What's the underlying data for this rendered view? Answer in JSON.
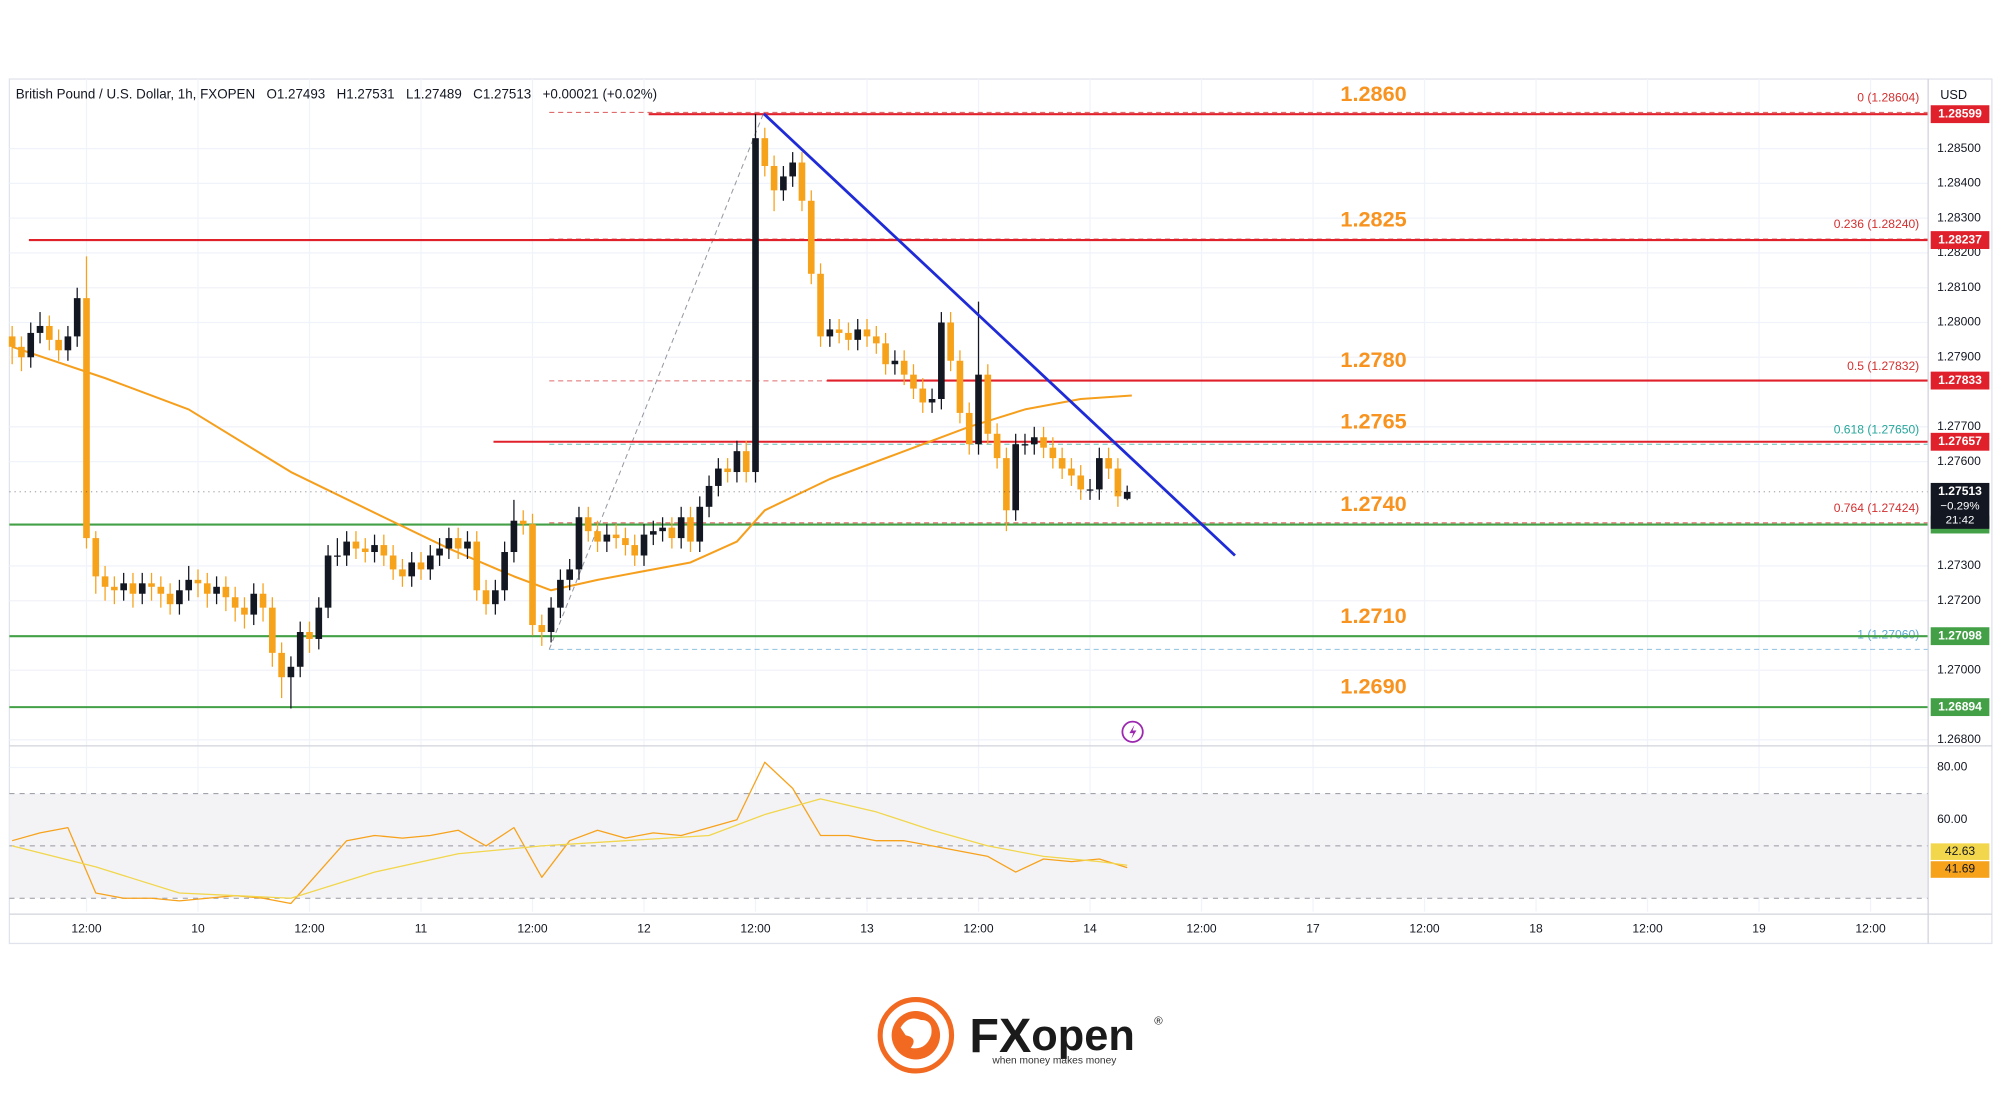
{
  "chart_data": {
    "type": "candlestick",
    "title": "British Pound / U.S. Dollar, 1h, FXOPEN",
    "ohlc_prefixes": [
      "O",
      "H",
      "L",
      "C"
    ],
    "change": "+0.00021 (+0.02%)",
    "currency": "USD",
    "up_color": "#131722",
    "down_color": "#f7a21b",
    "grid": true,
    "xlim": [
      -0.3,
      206.2
    ],
    "xticks": [
      {
        "value": 8,
        "label": "12:00"
      },
      {
        "value": 20,
        "label": "10"
      },
      {
        "value": 32,
        "label": "12:00"
      },
      {
        "value": 44,
        "label": "11"
      },
      {
        "value": 56,
        "label": "12:00"
      },
      {
        "value": 68,
        "label": "12"
      },
      {
        "value": 80,
        "label": "12:00"
      },
      {
        "value": 92,
        "label": "13"
      },
      {
        "value": 104,
        "label": "12:00"
      },
      {
        "value": 116,
        "label": "14"
      },
      {
        "value": 128,
        "label": "12:00"
      },
      {
        "value": 140,
        "label": "17"
      },
      {
        "value": 152,
        "label": "12:00"
      },
      {
        "value": 164,
        "label": "18"
      },
      {
        "value": 176,
        "label": "12:00"
      },
      {
        "value": 188,
        "label": "19"
      },
      {
        "value": 200,
        "label": "12:00"
      }
    ],
    "ylim": [
      1.2679,
      1.287
    ],
    "yticks": [
      {
        "value": 1.285,
        "label": "1.28500"
      },
      {
        "value": 1.284,
        "label": "1.28400"
      },
      {
        "value": 1.283,
        "label": "1.28300"
      },
      {
        "value": 1.282,
        "label": "1.28200"
      },
      {
        "value": 1.281,
        "label": "1.28100"
      },
      {
        "value": 1.28,
        "label": "1.28000"
      },
      {
        "value": 1.279,
        "label": "1.27900"
      },
      {
        "value": 1.277,
        "label": "1.27700"
      },
      {
        "value": 1.276,
        "label": "1.27600"
      },
      {
        "value": 1.273,
        "label": "1.27300"
      },
      {
        "value": 1.272,
        "label": "1.27200"
      },
      {
        "value": 1.27,
        "label": "1.27000"
      },
      {
        "value": 1.268,
        "label": "1.26800"
      }
    ],
    "candles": [
      [
        1.2796,
        1.2799,
        1.2788,
        1.2793
      ],
      [
        1.2793,
        1.2796,
        1.2786,
        1.279
      ],
      [
        1.279,
        1.28,
        1.2787,
        1.2797
      ],
      [
        1.2797,
        1.2803,
        1.2794,
        1.2799
      ],
      [
        1.2799,
        1.2802,
        1.2792,
        1.2795
      ],
      [
        1.2795,
        1.2798,
        1.2789,
        1.2792
      ],
      [
        1.2792,
        1.2799,
        1.2789,
        1.2796
      ],
      [
        1.2796,
        1.281,
        1.2793,
        1.2807
      ],
      [
        1.2807,
        1.2819,
        1.2735,
        1.2738
      ],
      [
        1.2738,
        1.274,
        1.2722,
        1.2727
      ],
      [
        1.2727,
        1.273,
        1.272,
        1.2724
      ],
      [
        1.2724,
        1.2727,
        1.2719,
        1.2723
      ],
      [
        1.2723,
        1.2728,
        1.272,
        1.2725
      ],
      [
        1.2725,
        1.2728,
        1.2718,
        1.2722
      ],
      [
        1.2722,
        1.2728,
        1.2719,
        1.2725
      ],
      [
        1.2725,
        1.2728,
        1.272,
        1.2724
      ],
      [
        1.2724,
        1.2727,
        1.2718,
        1.2722
      ],
      [
        1.2722,
        1.2725,
        1.2716,
        1.2719
      ],
      [
        1.2719,
        1.2726,
        1.2716,
        1.2723
      ],
      [
        1.2723,
        1.273,
        1.272,
        1.2726
      ],
      [
        1.2726,
        1.2729,
        1.2721,
        1.2725
      ],
      [
        1.2725,
        1.2728,
        1.2718,
        1.2722
      ],
      [
        1.2722,
        1.2727,
        1.2719,
        1.2724
      ],
      [
        1.2724,
        1.2727,
        1.2717,
        1.2721
      ],
      [
        1.2721,
        1.2724,
        1.2714,
        1.2718
      ],
      [
        1.2718,
        1.2721,
        1.2712,
        1.2716
      ],
      [
        1.2716,
        1.2725,
        1.2713,
        1.2722
      ],
      [
        1.2722,
        1.2725,
        1.2714,
        1.2718
      ],
      [
        1.2718,
        1.2721,
        1.2701,
        1.2705
      ],
      [
        1.2705,
        1.2708,
        1.2692,
        1.2698
      ],
      [
        1.2698,
        1.2704,
        1.2689,
        1.2701
      ],
      [
        1.2701,
        1.2714,
        1.2698,
        1.2711
      ],
      [
        1.2711,
        1.2714,
        1.2705,
        1.2709
      ],
      [
        1.2709,
        1.2721,
        1.2706,
        1.2718
      ],
      [
        1.2718,
        1.2736,
        1.2715,
        1.2733
      ],
      [
        1.2733,
        1.2738,
        1.273,
        1.2733
      ],
      [
        1.2733,
        1.274,
        1.273,
        1.2737
      ],
      [
        1.2737,
        1.274,
        1.2732,
        1.2735
      ],
      [
        1.2735,
        1.2738,
        1.2731,
        1.2734
      ],
      [
        1.2734,
        1.2739,
        1.2731,
        1.2736
      ],
      [
        1.2736,
        1.2739,
        1.273,
        1.2733
      ],
      [
        1.2733,
        1.2736,
        1.2726,
        1.2729
      ],
      [
        1.2729,
        1.2732,
        1.2724,
        1.2727
      ],
      [
        1.2727,
        1.2734,
        1.2724,
        1.2731
      ],
      [
        1.2731,
        1.2734,
        1.2726,
        1.2729
      ],
      [
        1.2729,
        1.2736,
        1.2726,
        1.2733
      ],
      [
        1.2733,
        1.2738,
        1.273,
        1.2735
      ],
      [
        1.2735,
        1.2741,
        1.2732,
        1.2738
      ],
      [
        1.2738,
        1.2741,
        1.2732,
        1.2735
      ],
      [
        1.2735,
        1.274,
        1.2732,
        1.2737
      ],
      [
        1.2737,
        1.274,
        1.272,
        1.2723
      ],
      [
        1.2723,
        1.2726,
        1.2716,
        1.2719
      ],
      [
        1.2719,
        1.2726,
        1.2716,
        1.2723
      ],
      [
        1.2723,
        1.2737,
        1.272,
        1.2734
      ],
      [
        1.2734,
        1.2749,
        1.2731,
        1.2743
      ],
      [
        1.2743,
        1.2746,
        1.2739,
        1.2742
      ],
      [
        1.2742,
        1.2745,
        1.271,
        1.2713
      ],
      [
        1.2713,
        1.2716,
        1.2707,
        1.2711
      ],
      [
        1.2711,
        1.2721,
        1.2708,
        1.2718
      ],
      [
        1.2718,
        1.2729,
        1.2715,
        1.2726
      ],
      [
        1.2726,
        1.2732,
        1.2723,
        1.2729
      ],
      [
        1.2729,
        1.2747,
        1.2726,
        1.2744
      ],
      [
        1.2744,
        1.2747,
        1.2737,
        1.274
      ],
      [
        1.274,
        1.2743,
        1.2734,
        1.2737
      ],
      [
        1.2737,
        1.2742,
        1.2734,
        1.2739
      ],
      [
        1.2739,
        1.2742,
        1.2735,
        1.2738
      ],
      [
        1.2738,
        1.2741,
        1.2733,
        1.2736
      ],
      [
        1.2736,
        1.2739,
        1.273,
        1.2733
      ],
      [
        1.2733,
        1.2742,
        1.273,
        1.2739
      ],
      [
        1.2739,
        1.2743,
        1.2736,
        1.274
      ],
      [
        1.274,
        1.2744,
        1.2737,
        1.2741
      ],
      [
        1.2741,
        1.2744,
        1.2735,
        1.2738
      ],
      [
        1.2738,
        1.2747,
        1.2735,
        1.2744
      ],
      [
        1.2744,
        1.2747,
        1.2734,
        1.2737
      ],
      [
        1.2737,
        1.275,
        1.2734,
        1.2747
      ],
      [
        1.2747,
        1.2756,
        1.2744,
        1.2753
      ],
      [
        1.2753,
        1.2761,
        1.275,
        1.2758
      ],
      [
        1.2758,
        1.2761,
        1.2754,
        1.2757
      ],
      [
        1.2757,
        1.2766,
        1.2754,
        1.2763
      ],
      [
        1.2763,
        1.2766,
        1.2754,
        1.2757
      ],
      [
        1.2757,
        1.286,
        1.2754,
        1.2853
      ],
      [
        1.2853,
        1.2856,
        1.2842,
        1.2845
      ],
      [
        1.2845,
        1.2848,
        1.2832,
        1.2838
      ],
      [
        1.2838,
        1.2845,
        1.2835,
        1.2842
      ],
      [
        1.2842,
        1.2849,
        1.2839,
        1.2846
      ],
      [
        1.2846,
        1.2849,
        1.2832,
        1.2835
      ],
      [
        1.2835,
        1.2838,
        1.2811,
        1.2814
      ],
      [
        1.2814,
        1.2817,
        1.2793,
        1.2796
      ],
      [
        1.2796,
        1.2801,
        1.2793,
        1.2798
      ],
      [
        1.2798,
        1.2801,
        1.2794,
        1.2797
      ],
      [
        1.2797,
        1.28,
        1.2792,
        1.2795
      ],
      [
        1.2795,
        1.2801,
        1.2792,
        1.2798
      ],
      [
        1.2798,
        1.2801,
        1.2793,
        1.2796
      ],
      [
        1.2796,
        1.2799,
        1.2791,
        1.2794
      ],
      [
        1.2794,
        1.2797,
        1.2785,
        1.2788
      ],
      [
        1.2788,
        1.2792,
        1.2785,
        1.2789
      ],
      [
        1.2789,
        1.2792,
        1.2782,
        1.2785
      ],
      [
        1.2785,
        1.2788,
        1.2778,
        1.2781
      ],
      [
        1.2781,
        1.2784,
        1.2774,
        1.2777
      ],
      [
        1.2777,
        1.2781,
        1.2774,
        1.2778
      ],
      [
        1.2778,
        1.2803,
        1.2775,
        1.28
      ],
      [
        1.28,
        1.2803,
        1.2786,
        1.2789
      ],
      [
        1.2789,
        1.2792,
        1.2771,
        1.2774
      ],
      [
        1.2774,
        1.2777,
        1.2762,
        1.2765
      ],
      [
        1.2765,
        1.2806,
        1.2762,
        1.2785
      ],
      [
        1.2785,
        1.2788,
        1.2765,
        1.2768
      ],
      [
        1.2768,
        1.2771,
        1.2758,
        1.2761
      ],
      [
        1.2761,
        1.2764,
        1.274,
        1.2746
      ],
      [
        1.2746,
        1.2768,
        1.2743,
        1.2765
      ],
      [
        1.2765,
        1.2768,
        1.2762,
        1.2765
      ],
      [
        1.2765,
        1.277,
        1.2762,
        1.2767
      ],
      [
        1.2767,
        1.277,
        1.2761,
        1.2764
      ],
      [
        1.2764,
        1.2767,
        1.2758,
        1.2761
      ],
      [
        1.2761,
        1.2764,
        1.2755,
        1.2758
      ],
      [
        1.2758,
        1.2761,
        1.2753,
        1.2756
      ],
      [
        1.2756,
        1.2759,
        1.2749,
        1.2752
      ],
      [
        1.2752,
        1.2755,
        1.2749,
        1.2752
      ],
      [
        1.2752,
        1.2764,
        1.2749,
        1.2761
      ],
      [
        1.2761,
        1.2764,
        1.2755,
        1.2758
      ],
      [
        1.2758,
        1.2761,
        1.2747,
        1.275
      ],
      [
        1.27493,
        1.27531,
        1.27489,
        1.27513
      ]
    ],
    "price_box": {
      "change": "−0.29%",
      "countdown": "21:42"
    },
    "ma": {
      "color": "#f59f1d",
      "x": [
        0,
        10,
        19,
        30,
        40,
        47,
        54,
        58,
        63,
        73,
        78,
        81,
        88,
        95,
        103,
        109,
        115,
        120.5
      ],
      "values": [
        1.2793,
        1.2784,
        1.2775,
        1.2757,
        1.2744,
        1.2735,
        1.2727,
        1.2723,
        1.2726,
        1.2731,
        1.2737,
        1.2746,
        1.2755,
        1.2762,
        1.277,
        1.2775,
        1.2778,
        1.2779
      ]
    },
    "levels": [
      {
        "label": "1.2860",
        "price": 1.28599,
        "color": "#e0202a",
        "x": 68.5
      },
      {
        "label": "1.2825",
        "price": 1.28237,
        "color": "#e0202a",
        "x": 1.8
      },
      {
        "label": "1.2780",
        "price": 1.27833,
        "color": "#e0202a",
        "x": 87.7
      },
      {
        "label": "1.2765",
        "price": 1.27657,
        "color": "#e0202a",
        "x": 51.8
      },
      {
        "label": "1.2740",
        "price": 1.27419,
        "color": "#43a047"
      },
      {
        "label": "1.2710",
        "price": 1.27098,
        "color": "#43a047"
      },
      {
        "label": "1.2690",
        "price": 1.26894,
        "color": "#43a047"
      }
    ],
    "level_label_color": "#f7931e",
    "fib": {
      "x": [
        57.8,
        80.9
      ],
      "levels": [
        {
          "label": "0 (1.28604)",
          "value": 1.28604,
          "color": "#d32f2f"
        },
        {
          "label": "0.236 (1.28240)",
          "value": 1.2824,
          "color": "#d32f2f"
        },
        {
          "label": "0.5 (1.27832)",
          "value": 1.27832,
          "color": "#d32f2f"
        },
        {
          "label": "0.618 (1.27650)",
          "value": 1.2765,
          "color": "#26a69a"
        },
        {
          "label": "0.764 (1.27424)",
          "value": 1.27424,
          "color": "#d32f2f"
        },
        {
          "label": "1 (1.27060)",
          "value": 1.2706,
          "color": "#5fa8d3"
        }
      ]
    },
    "trendline": {
      "color": "#1f2bd6",
      "x": [
        80.9,
        131.6
      ],
      "values": [
        1.286,
        1.2733
      ]
    },
    "rsi": {
      "ylim": [
        24.9,
        86.8
      ],
      "yticks": [
        {
          "value": 80,
          "label": "80.00"
        },
        {
          "value": 60,
          "label": "60.00"
        }
      ],
      "band": [
        70,
        30
      ],
      "levels": [
        70,
        50,
        30
      ],
      "series": [
        {
          "color": "#f7a21b",
          "x": [
            0,
            3,
            6,
            9,
            12,
            15,
            18,
            21,
            24,
            27,
            30,
            33,
            36,
            39,
            42,
            45,
            48,
            51,
            54,
            57,
            60,
            63,
            66,
            69,
            72,
            75,
            78,
            81,
            84,
            87,
            90,
            93,
            96,
            99,
            102,
            105,
            108,
            111,
            114,
            117,
            120
          ],
          "values": [
            52,
            55,
            57,
            32,
            30,
            30,
            29,
            30,
            31,
            30,
            28,
            40,
            52,
            54,
            53,
            54,
            56,
            50,
            57,
            38,
            52,
            56,
            53,
            55,
            54,
            57,
            60,
            82,
            72,
            54,
            54,
            52,
            52,
            50,
            48,
            46,
            40,
            45,
            44,
            45,
            41.69
          ]
        },
        {
          "color": "#f2d64b",
          "x": [
            0,
            9,
            18,
            30,
            39,
            48,
            57,
            66,
            75,
            81,
            87,
            93,
            99,
            105,
            111,
            117,
            120
          ],
          "values": [
            50,
            42,
            32,
            30,
            40,
            47,
            50,
            52,
            54,
            62,
            68,
            63,
            56,
            50,
            46,
            44,
            42.63
          ]
        }
      ]
    },
    "logo": {
      "brand_fx": "FX",
      "brand_open": "open",
      "registered": "®",
      "tagline": "when money makes money"
    }
  }
}
